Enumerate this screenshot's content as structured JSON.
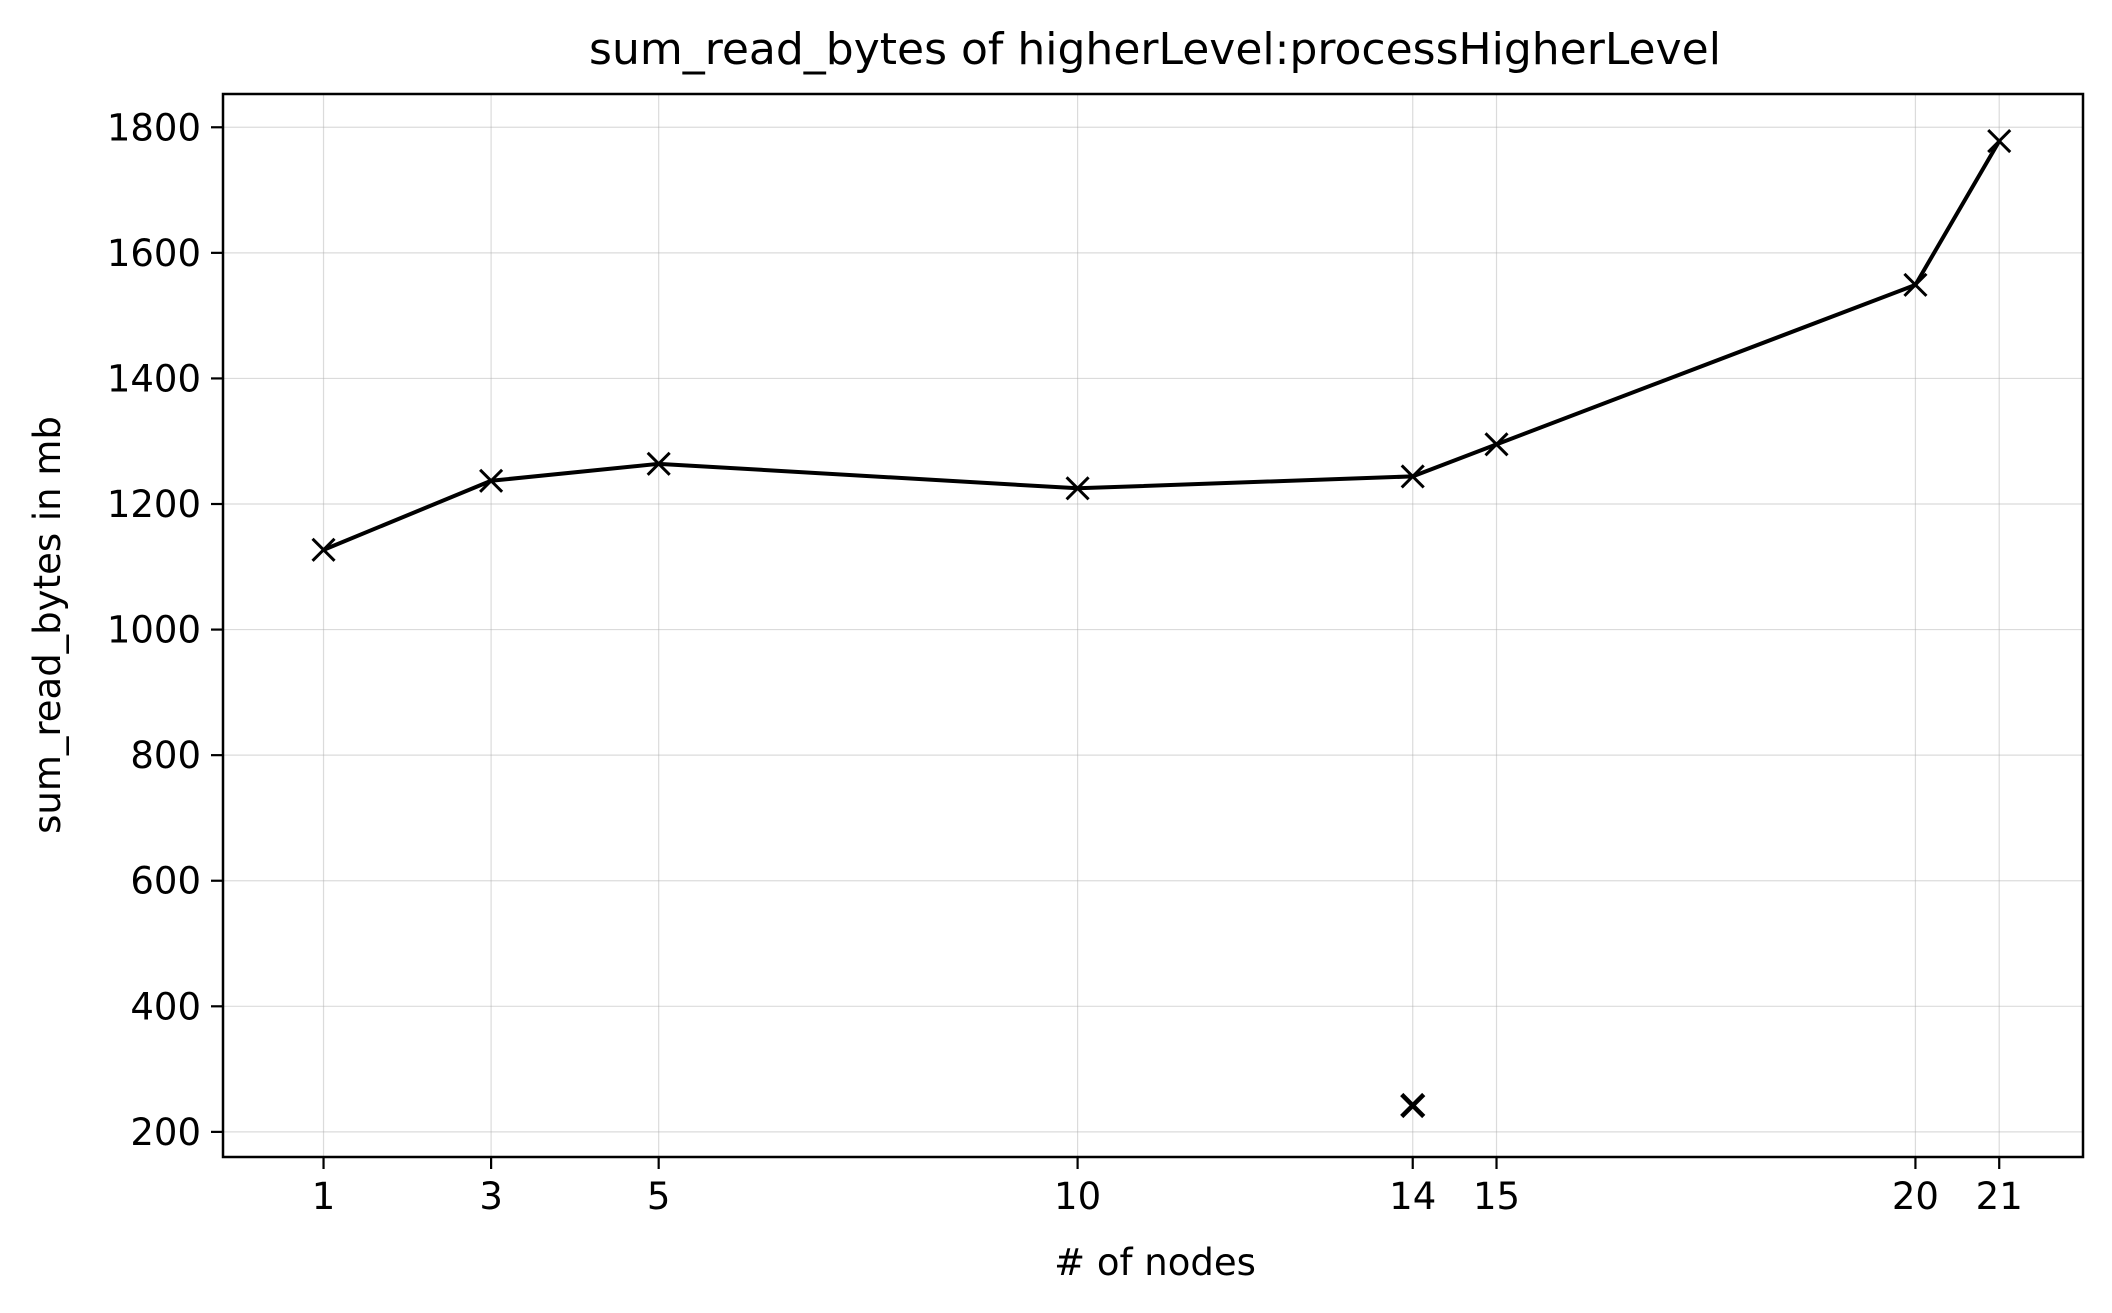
{
  "chart_data": {
    "type": "line",
    "title": "sum_read_bytes of higherLevel:processHigherLevel",
    "xlabel": "# of nodes",
    "ylabel": "sum_read_bytes in mb",
    "xlim": [
      -0.2,
      22.0
    ],
    "ylim": [
      160,
      1853
    ],
    "x_ticks": [
      1,
      3,
      5,
      10,
      14,
      15,
      20,
      21
    ],
    "y_ticks": [
      200,
      400,
      600,
      800,
      1000,
      1200,
      1400,
      1600,
      1800
    ],
    "grid": true,
    "series": [
      {
        "style": "line",
        "marker": "x",
        "color": "#000000",
        "x": [
          1,
          3,
          5,
          10,
          14,
          15,
          20,
          21
        ],
        "y": [
          1127,
          1237,
          1264,
          1225,
          1244,
          1295,
          1549,
          1778
        ]
      },
      {
        "style": "points",
        "marker": "x",
        "color": "#000000",
        "x": [
          14
        ],
        "y": [
          242
        ]
      }
    ]
  }
}
